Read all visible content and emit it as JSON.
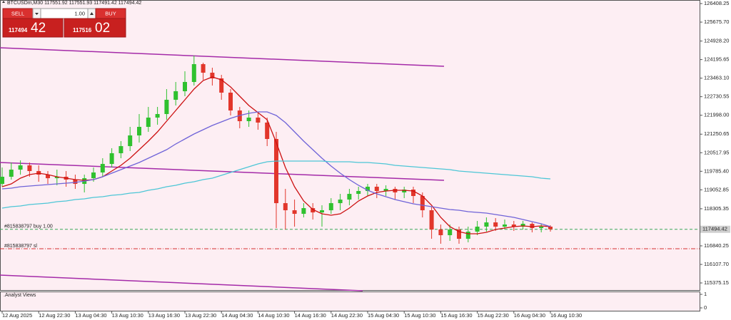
{
  "chart_data": {
    "type": "candlestick",
    "title": "BTCUSDm,M30  117551.92 117551.93 117491.42 117494.42",
    "categories": [
      "12 Aug 2025",
      null,
      null,
      null,
      "12 Aug 22:30",
      null,
      null,
      null,
      "13 Aug 04:30",
      null,
      null,
      null,
      "13 Aug 10:30",
      null,
      null,
      null,
      "13 Aug 16:30",
      null,
      null,
      null,
      "13 Aug 22:30",
      null,
      null,
      null,
      "14 Aug 04:30",
      null,
      null,
      null,
      "14 Aug 10:30",
      null,
      null,
      null,
      "14 Aug 16:30",
      null,
      null,
      null,
      "14 Aug 22:30",
      null,
      null,
      null,
      "15 Aug 04:30",
      null,
      null,
      null,
      "15 Aug 10:30",
      null,
      null,
      null,
      "15 Aug 16:30",
      null,
      null,
      null,
      "15 Aug 22:30",
      null,
      null,
      null,
      "16 Aug 04:30",
      null,
      null,
      null,
      "16 Aug 10:30"
    ],
    "open": [
      119287,
      119569,
      119850,
      120019,
      119794,
      119653,
      119512,
      119569,
      119456,
      119287,
      119512,
      119738,
      120075,
      120498,
      120779,
      121201,
      121539,
      121905,
      122046,
      122609,
      122946,
      123312,
      124016,
      123678,
      123453,
      122890,
      122186,
      121764,
      121905,
      121708,
      121061,
      118527,
      118246,
      118105,
      118330,
      118161,
      118246,
      118527,
      118668,
      118893,
      119006,
      119175,
      119006,
      119090,
      118950,
      119062,
      118809,
      118246,
      117486,
      117261,
      117486,
      117120,
      117402,
      117599,
      117767,
      117599,
      117683,
      117599,
      117711,
      117542,
      117599
    ],
    "high": [
      119935,
      120132,
      120216,
      120132,
      120019,
      119794,
      119850,
      119794,
      119653,
      119653,
      119935,
      120301,
      120695,
      120976,
      121539,
      122046,
      122327,
      122327,
      123031,
      123312,
      123734,
      124354,
      124072,
      123875,
      123594,
      123031,
      122327,
      122186,
      122102,
      121905,
      121342,
      119090,
      118668,
      118527,
      118527,
      118443,
      118724,
      118893,
      119090,
      119175,
      119287,
      119287,
      119231,
      119175,
      119175,
      119175,
      118950,
      118387,
      117683,
      117683,
      117599,
      117599,
      117824,
      117964,
      117936,
      117880,
      117824,
      117824,
      117767,
      117711,
      117655
    ],
    "low": [
      119175,
      119456,
      119653,
      119569,
      119372,
      119287,
      119231,
      119175,
      119090,
      118950,
      119372,
      119569,
      119935,
      120301,
      120582,
      120920,
      121342,
      121623,
      121820,
      122383,
      122749,
      123171,
      123397,
      123171,
      122609,
      121989,
      121483,
      121539,
      121426,
      120779,
      117542,
      117486,
      117599,
      117964,
      117880,
      117599,
      118105,
      118246,
      118443,
      118668,
      118809,
      118724,
      118809,
      118668,
      118724,
      118527,
      117964,
      117120,
      116923,
      117036,
      116923,
      116979,
      117261,
      117402,
      117430,
      117486,
      117430,
      117486,
      117373,
      117373,
      117402
    ],
    "close": [
      119569,
      119850,
      120019,
      119794,
      119653,
      119512,
      119569,
      119456,
      119287,
      119512,
      119738,
      120075,
      120498,
      120779,
      121201,
      121539,
      121905,
      122046,
      122609,
      122946,
      123312,
      124016,
      123678,
      123453,
      122890,
      122186,
      121764,
      121905,
      121708,
      121061,
      118527,
      118246,
      118105,
      118330,
      118161,
      118246,
      118527,
      118668,
      118893,
      119006,
      119175,
      119006,
      119090,
      118950,
      119062,
      118809,
      118246,
      117486,
      117261,
      117486,
      117120,
      117402,
      117599,
      117767,
      117599,
      117683,
      117599,
      117711,
      117542,
      117599,
      117494.42
    ],
    "up_color": "#2fc12f",
    "down_color": "#e2362b",
    "overlays": [
      {
        "color": "#cc1111",
        "values": [
          119175,
          119287,
          119512,
          119653,
          119709,
          119653,
          119569,
          119512,
          119456,
          119428,
          119456,
          119569,
          119794,
          120019,
          120301,
          120638,
          120976,
          121342,
          121764,
          122186,
          122609,
          123031,
          123369,
          123509,
          123397,
          123115,
          122749,
          122383,
          122102,
          121820,
          120920,
          119935,
          119175,
          118612,
          118274,
          118105,
          118049,
          118105,
          118330,
          118612,
          118809,
          118950,
          119006,
          119034,
          119034,
          119006,
          118809,
          118443,
          117964,
          117599,
          117402,
          117317,
          117317,
          117373,
          117486,
          117542,
          117599,
          117627,
          117599,
          117627,
          117599
        ]
      },
      {
        "color": "#6f63d8",
        "values": [
          119090,
          119118,
          119175,
          119203,
          119231,
          119259,
          119287,
          119315,
          119344,
          119400,
          119456,
          119569,
          119709,
          119850,
          119991,
          120132,
          120301,
          120469,
          120638,
          120864,
          121061,
          121258,
          121426,
          121595,
          121736,
          121877,
          121989,
          122074,
          122130,
          122130,
          121989,
          121708,
          121342,
          120976,
          120638,
          120301,
          119991,
          119709,
          119456,
          119231,
          119034,
          118893,
          118781,
          118668,
          118584,
          118499,
          118443,
          118387,
          118330,
          118274,
          118246,
          118190,
          118161,
          118133,
          118077,
          118021,
          117964,
          117880,
          117796,
          117711,
          117599
        ]
      },
      {
        "color": "#4cc6d6",
        "values": [
          118330,
          118387,
          118415,
          118471,
          118499,
          118527,
          118584,
          118612,
          118668,
          118696,
          118753,
          118781,
          118837,
          118865,
          118921,
          118950,
          119034,
          119090,
          119175,
          119231,
          119315,
          119372,
          119456,
          119512,
          119625,
          119738,
          119850,
          119963,
          120075,
          120160,
          120188,
          120188,
          120188,
          120188,
          120188,
          120188,
          120160,
          120160,
          120160,
          120132,
          120132,
          120104,
          120075,
          120019,
          119991,
          119963,
          119935,
          119907,
          119878,
          119850,
          119794,
          119766,
          119738,
          119709,
          119681,
          119653,
          119625,
          119597,
          119569,
          119512,
          119484
        ]
      }
    ],
    "ylim": [
      115066,
      126549
    ],
    "yticks": [
      115375.15,
      {
        "value": 116107.7,
        "label": "116107.70"
      },
      116840.25,
      118305.35,
      119052.85,
      {
        "value": 119785.4,
        "label": "119785.40"
      },
      120517.95,
      121250.65,
      {
        "value": 121998,
        "label": "121998.00"
      },
      122730.55,
      {
        "value": 123463.1,
        "label": "123463.10"
      },
      124195.65,
      {
        "value": 124928.2,
        "label": "124928.20"
      },
      {
        "value": 125675.7,
        "label": "125675.70"
      },
      126408.25
    ],
    "current_price": 117494.42,
    "orders": [
      {
        "label": "#815838797 buy 1.00",
        "price": 117494.42,
        "color": "#3aa85a"
      },
      {
        "label": "#815838797 sl",
        "price": 116726,
        "color": "#d83030"
      }
    ],
    "indicator_pane": {
      "label": ".Analyst Views",
      "ylim": [
        0,
        1
      ],
      "yticks": [
        0,
        1
      ]
    }
  },
  "trade_panel": {
    "sell": "SELL",
    "buy": "BUY",
    "volume": "1.00",
    "sell_price": {
      "main": "117494",
      "pips": "42"
    },
    "buy_price": {
      "main": "117516",
      "pips": "02"
    }
  }
}
